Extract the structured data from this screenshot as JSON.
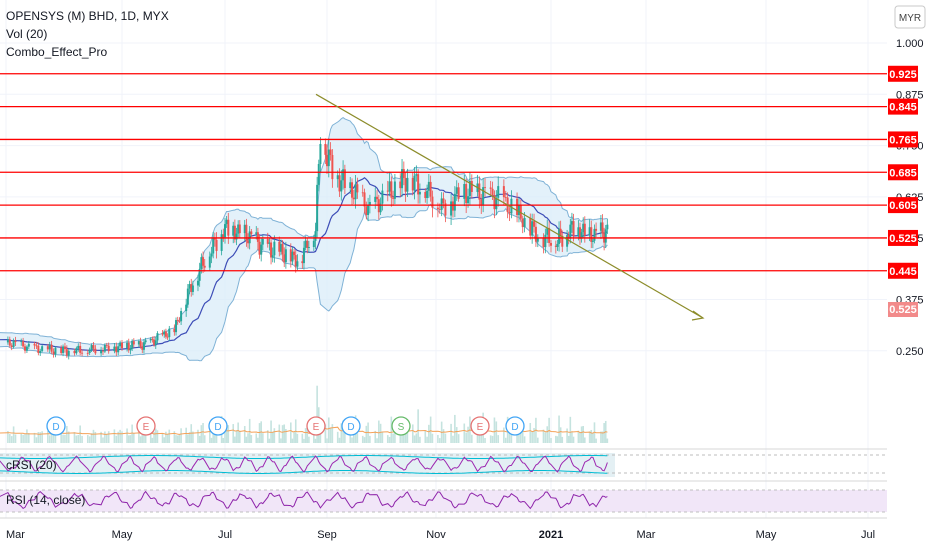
{
  "header": {
    "symbol_line": "OPENSYS (M) BHD, 1D, MYX",
    "indicator_1": "Vol (20)",
    "indicator_2": "Combo_Effect_Pro"
  },
  "currency_button": "MYR",
  "panes": {
    "crsi_label": "cRSI (20)",
    "rsi_label": "RSI (14, close)"
  },
  "colors": {
    "line_red": "#ff0000",
    "trend_olive": "#8c8c2a",
    "band_blue": "#7fb2d6",
    "band_fill": "#d9ecf8",
    "candle_up": "#26a69a",
    "candle_down": "#ef5350",
    "current_price_bg": "#f28a8a",
    "crsi_line": "#9c27b0",
    "crsi_band": "#00bcd4",
    "rsi_line": "#8e24aa",
    "rsi_fill": "#efe3f7",
    "vol_ma": "#f4a259",
    "volume_bar": "#c5e3df"
  },
  "chart_data": {
    "type": "candlestick",
    "title": "OPENSYS (M) BHD, 1D, MYX",
    "y_axis_ticks": [
      "1.000",
      "0.875",
      "0.750",
      "0.625",
      "0.525",
      "0.375",
      "0.250"
    ],
    "x_axis_ticks": [
      "Mar",
      "May",
      "Jul",
      "Sep",
      "Nov",
      "2021",
      "Mar",
      "May",
      "Jul"
    ],
    "ylim": [
      0.2,
      1.05
    ],
    "current_price": "0.525",
    "horizontal_levels": [
      "0.925",
      "0.845",
      "0.765",
      "0.685",
      "0.605",
      "0.525",
      "0.445"
    ],
    "trendline": {
      "from": {
        "date": "Aug 2020",
        "price": 0.875
      },
      "to": {
        "date": "Feb 2021",
        "price": 0.47
      }
    },
    "event_markers": [
      {
        "date": "Mar 2020",
        "label": "D"
      },
      {
        "date": "May 2020",
        "label": "E"
      },
      {
        "date": "Jun 2020",
        "label": "D"
      },
      {
        "date": "Aug 2020",
        "label": "E"
      },
      {
        "date": "Sep 2020",
        "label": "D"
      },
      {
        "date": "Oct 2020",
        "label": "S"
      },
      {
        "date": "Nov 2020",
        "label": "E"
      },
      {
        "date": "Dec 2020",
        "label": "D"
      }
    ],
    "close_series": [
      [
        "2020-02-15",
        0.285
      ],
      [
        "2020-03-01",
        0.27
      ],
      [
        "2020-03-15",
        0.255
      ],
      [
        "2020-04-01",
        0.25
      ],
      [
        "2020-04-15",
        0.255
      ],
      [
        "2020-05-01",
        0.26
      ],
      [
        "2020-05-15",
        0.265
      ],
      [
        "2020-06-01",
        0.3
      ],
      [
        "2020-06-10",
        0.4
      ],
      [
        "2020-06-20",
        0.48
      ],
      [
        "2020-07-01",
        0.55
      ],
      [
        "2020-07-15",
        0.53
      ],
      [
        "2020-07-25",
        0.5
      ],
      [
        "2020-08-05",
        0.49
      ],
      [
        "2020-08-15",
        0.47
      ],
      [
        "2020-08-25",
        0.55
      ],
      [
        "2020-08-28",
        0.78
      ],
      [
        "2020-09-05",
        0.68
      ],
      [
        "2020-09-15",
        0.64
      ],
      [
        "2020-09-25",
        0.59
      ],
      [
        "2020-10-05",
        0.63
      ],
      [
        "2020-10-15",
        0.67
      ],
      [
        "2020-10-25",
        0.65
      ],
      [
        "2020-11-05",
        0.6
      ],
      [
        "2020-11-15",
        0.64
      ],
      [
        "2020-11-25",
        0.63
      ],
      [
        "2020-12-05",
        0.62
      ],
      [
        "2020-12-15",
        0.58
      ],
      [
        "2020-12-25",
        0.53
      ],
      [
        "2021-01-05",
        0.52
      ],
      [
        "2021-01-15",
        0.55
      ],
      [
        "2021-01-25",
        0.53
      ],
      [
        "2021-02-05",
        0.54
      ]
    ]
  }
}
